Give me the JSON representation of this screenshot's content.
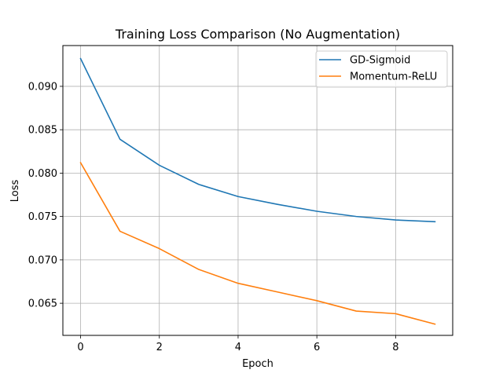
{
  "chart_data": {
    "type": "line",
    "title": "Training Loss Comparison (No Augmentation)",
    "xlabel": "Epoch",
    "ylabel": "Loss",
    "x": [
      0,
      1,
      2,
      3,
      4,
      5,
      6,
      7,
      8,
      9
    ],
    "xlim": [
      -0.45,
      9.45
    ],
    "ylim": [
      0.0613,
      0.0947
    ],
    "xticks": [
      "0",
      "2",
      "4",
      "6",
      "8"
    ],
    "yticks": [
      "0.065",
      "0.070",
      "0.075",
      "0.080",
      "0.085",
      "0.090"
    ],
    "grid": true,
    "legend_position": "top-right",
    "series": [
      {
        "name": "GD-Sigmoid",
        "color": "#1f77b4",
        "values": [
          0.0932,
          0.0839,
          0.0809,
          0.0787,
          0.0773,
          0.0764,
          0.0756,
          0.075,
          0.0746,
          0.0744
        ]
      },
      {
        "name": "Momentum-ReLU",
        "color": "#ff7f0e",
        "values": [
          0.0812,
          0.0733,
          0.0713,
          0.0689,
          0.0673,
          0.0663,
          0.0653,
          0.0641,
          0.0638,
          0.0626
        ]
      }
    ]
  }
}
